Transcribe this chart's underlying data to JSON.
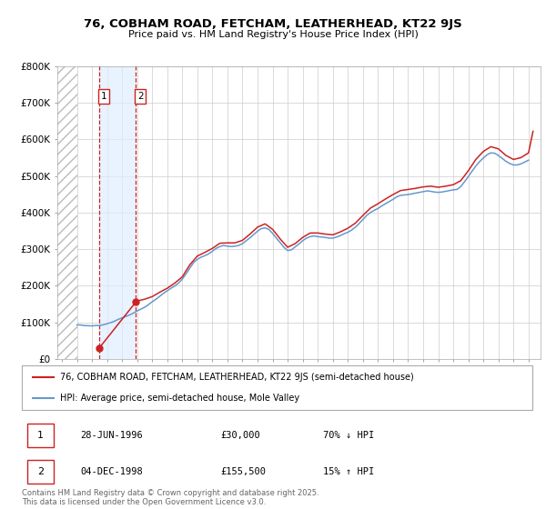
{
  "title": "76, COBHAM ROAD, FETCHAM, LEATHERHEAD, KT22 9JS",
  "subtitle": "Price paid vs. HM Land Registry's House Price Index (HPI)",
  "ylim": [
    0,
    800000
  ],
  "xlim_start": 1993.7,
  "xlim_end": 2025.8,
  "yticks": [
    0,
    100000,
    200000,
    300000,
    400000,
    500000,
    600000,
    700000,
    800000
  ],
  "ytick_labels": [
    "£0",
    "£100K",
    "£200K",
    "£300K",
    "£400K",
    "£500K",
    "£600K",
    "£700K",
    "£800K"
  ],
  "transactions": [
    {
      "date": 1996.49,
      "price": 30000,
      "label": "1",
      "pct": "70% ↓ HPI",
      "date_str": "28-JUN-1996",
      "price_str": "£30,000"
    },
    {
      "date": 1998.92,
      "price": 155500,
      "label": "2",
      "pct": "15% ↑ HPI",
      "date_str": "04-DEC-1998",
      "price_str": "£155,500"
    }
  ],
  "hpi_color": "#6699cc",
  "price_color": "#cc2222",
  "background_color": "#ffffff",
  "grid_color": "#cccccc",
  "legend_entries": [
    "76, COBHAM ROAD, FETCHAM, LEATHERHEAD, KT22 9JS (semi-detached house)",
    "HPI: Average price, semi-detached house, Mole Valley"
  ],
  "footnote": "Contains HM Land Registry data © Crown copyright and database right 2025.\nThis data is licensed under the Open Government Licence v3.0.",
  "hpi_data": [
    [
      1995.0,
      93000
    ],
    [
      1995.25,
      92500
    ],
    [
      1995.5,
      91000
    ],
    [
      1995.75,
      90500
    ],
    [
      1996.0,
      90000
    ],
    [
      1996.25,
      91000
    ],
    [
      1996.5,
      91500
    ],
    [
      1996.75,
      93000
    ],
    [
      1997.0,
      96000
    ],
    [
      1997.25,
      99000
    ],
    [
      1997.5,
      103000
    ],
    [
      1997.75,
      108000
    ],
    [
      1998.0,
      112000
    ],
    [
      1998.25,
      116000
    ],
    [
      1998.5,
      120000
    ],
    [
      1998.75,
      125000
    ],
    [
      1999.0,
      131000
    ],
    [
      1999.25,
      136000
    ],
    [
      1999.5,
      141000
    ],
    [
      1999.75,
      148000
    ],
    [
      2000.0,
      156000
    ],
    [
      2000.25,
      163000
    ],
    [
      2000.5,
      171000
    ],
    [
      2000.75,
      179000
    ],
    [
      2001.0,
      186000
    ],
    [
      2001.25,
      193000
    ],
    [
      2001.5,
      199000
    ],
    [
      2001.75,
      207000
    ],
    [
      2002.0,
      218000
    ],
    [
      2002.25,
      232000
    ],
    [
      2002.5,
      248000
    ],
    [
      2002.75,
      263000
    ],
    [
      2003.0,
      272000
    ],
    [
      2003.25,
      278000
    ],
    [
      2003.5,
      282000
    ],
    [
      2003.75,
      287000
    ],
    [
      2004.0,
      294000
    ],
    [
      2004.25,
      302000
    ],
    [
      2004.5,
      307000
    ],
    [
      2004.75,
      310000
    ],
    [
      2005.0,
      308000
    ],
    [
      2005.25,
      307000
    ],
    [
      2005.5,
      308000
    ],
    [
      2005.75,
      310000
    ],
    [
      2006.0,
      315000
    ],
    [
      2006.25,
      323000
    ],
    [
      2006.5,
      331000
    ],
    [
      2006.75,
      340000
    ],
    [
      2007.0,
      349000
    ],
    [
      2007.25,
      356000
    ],
    [
      2007.5,
      358000
    ],
    [
      2007.75,
      354000
    ],
    [
      2008.0,
      343000
    ],
    [
      2008.25,
      330000
    ],
    [
      2008.5,
      318000
    ],
    [
      2008.75,
      305000
    ],
    [
      2009.0,
      296000
    ],
    [
      2009.25,
      298000
    ],
    [
      2009.5,
      306000
    ],
    [
      2009.75,
      314000
    ],
    [
      2010.0,
      323000
    ],
    [
      2010.25,
      330000
    ],
    [
      2010.5,
      334000
    ],
    [
      2010.75,
      336000
    ],
    [
      2011.0,
      334000
    ],
    [
      2011.25,
      333000
    ],
    [
      2011.5,
      332000
    ],
    [
      2011.75,
      330000
    ],
    [
      2012.0,
      330000
    ],
    [
      2012.25,
      333000
    ],
    [
      2012.5,
      337000
    ],
    [
      2012.75,
      342000
    ],
    [
      2013.0,
      346000
    ],
    [
      2013.25,
      352000
    ],
    [
      2013.5,
      360000
    ],
    [
      2013.75,
      370000
    ],
    [
      2014.0,
      381000
    ],
    [
      2014.25,
      392000
    ],
    [
      2014.5,
      400000
    ],
    [
      2014.75,
      406000
    ],
    [
      2015.0,
      411000
    ],
    [
      2015.25,
      418000
    ],
    [
      2015.5,
      424000
    ],
    [
      2015.75,
      430000
    ],
    [
      2016.0,
      436000
    ],
    [
      2016.25,
      443000
    ],
    [
      2016.5,
      447000
    ],
    [
      2016.75,
      448000
    ],
    [
      2017.0,
      449000
    ],
    [
      2017.25,
      451000
    ],
    [
      2017.5,
      453000
    ],
    [
      2017.75,
      455000
    ],
    [
      2018.0,
      457000
    ],
    [
      2018.25,
      459000
    ],
    [
      2018.5,
      458000
    ],
    [
      2018.75,
      456000
    ],
    [
      2019.0,
      455000
    ],
    [
      2019.25,
      456000
    ],
    [
      2019.5,
      458000
    ],
    [
      2019.75,
      460000
    ],
    [
      2020.0,
      462000
    ],
    [
      2020.25,
      463000
    ],
    [
      2020.5,
      471000
    ],
    [
      2020.75,
      484000
    ],
    [
      2021.0,
      498000
    ],
    [
      2021.25,
      513000
    ],
    [
      2021.5,
      527000
    ],
    [
      2021.75,
      539000
    ],
    [
      2022.0,
      549000
    ],
    [
      2022.25,
      558000
    ],
    [
      2022.5,
      563000
    ],
    [
      2022.75,
      562000
    ],
    [
      2023.0,
      556000
    ],
    [
      2023.25,
      548000
    ],
    [
      2023.5,
      540000
    ],
    [
      2023.75,
      534000
    ],
    [
      2024.0,
      530000
    ],
    [
      2024.25,
      530000
    ],
    [
      2024.5,
      533000
    ],
    [
      2024.75,
      538000
    ],
    [
      2025.0,
      543000
    ]
  ],
  "price_data": [
    [
      1996.49,
      30000
    ],
    [
      1998.92,
      155500
    ],
    [
      1999.0,
      158000
    ],
    [
      1999.5,
      163000
    ],
    [
      2000.0,
      170000
    ],
    [
      2000.5,
      182000
    ],
    [
      2001.0,
      193000
    ],
    [
      2001.5,
      207000
    ],
    [
      2002.0,
      224000
    ],
    [
      2002.5,
      257000
    ],
    [
      2003.0,
      281000
    ],
    [
      2003.5,
      291000
    ],
    [
      2004.0,
      302000
    ],
    [
      2004.5,
      316000
    ],
    [
      2005.0,
      317000
    ],
    [
      2005.5,
      317000
    ],
    [
      2006.0,
      324000
    ],
    [
      2006.5,
      341000
    ],
    [
      2007.0,
      360000
    ],
    [
      2007.5,
      369000
    ],
    [
      2008.0,
      354000
    ],
    [
      2008.5,
      328000
    ],
    [
      2009.0,
      305000
    ],
    [
      2009.5,
      315000
    ],
    [
      2010.0,
      332000
    ],
    [
      2010.5,
      344000
    ],
    [
      2011.0,
      344000
    ],
    [
      2011.5,
      341000
    ],
    [
      2012.0,
      339000
    ],
    [
      2012.5,
      347000
    ],
    [
      2013.0,
      357000
    ],
    [
      2013.5,
      371000
    ],
    [
      2014.0,
      392000
    ],
    [
      2014.5,
      412000
    ],
    [
      2015.0,
      424000
    ],
    [
      2015.5,
      437000
    ],
    [
      2016.0,
      449000
    ],
    [
      2016.5,
      460000
    ],
    [
      2017.0,
      463000
    ],
    [
      2017.5,
      466000
    ],
    [
      2018.0,
      470000
    ],
    [
      2018.5,
      472000
    ],
    [
      2019.0,
      469000
    ],
    [
      2019.5,
      472000
    ],
    [
      2020.0,
      476000
    ],
    [
      2020.5,
      487000
    ],
    [
      2021.0,
      514000
    ],
    [
      2021.5,
      545000
    ],
    [
      2022.0,
      567000
    ],
    [
      2022.5,
      580000
    ],
    [
      2023.0,
      574000
    ],
    [
      2023.5,
      556000
    ],
    [
      2024.0,
      545000
    ],
    [
      2024.5,
      550000
    ],
    [
      2025.0,
      563000
    ],
    [
      2025.3,
      622000
    ]
  ]
}
